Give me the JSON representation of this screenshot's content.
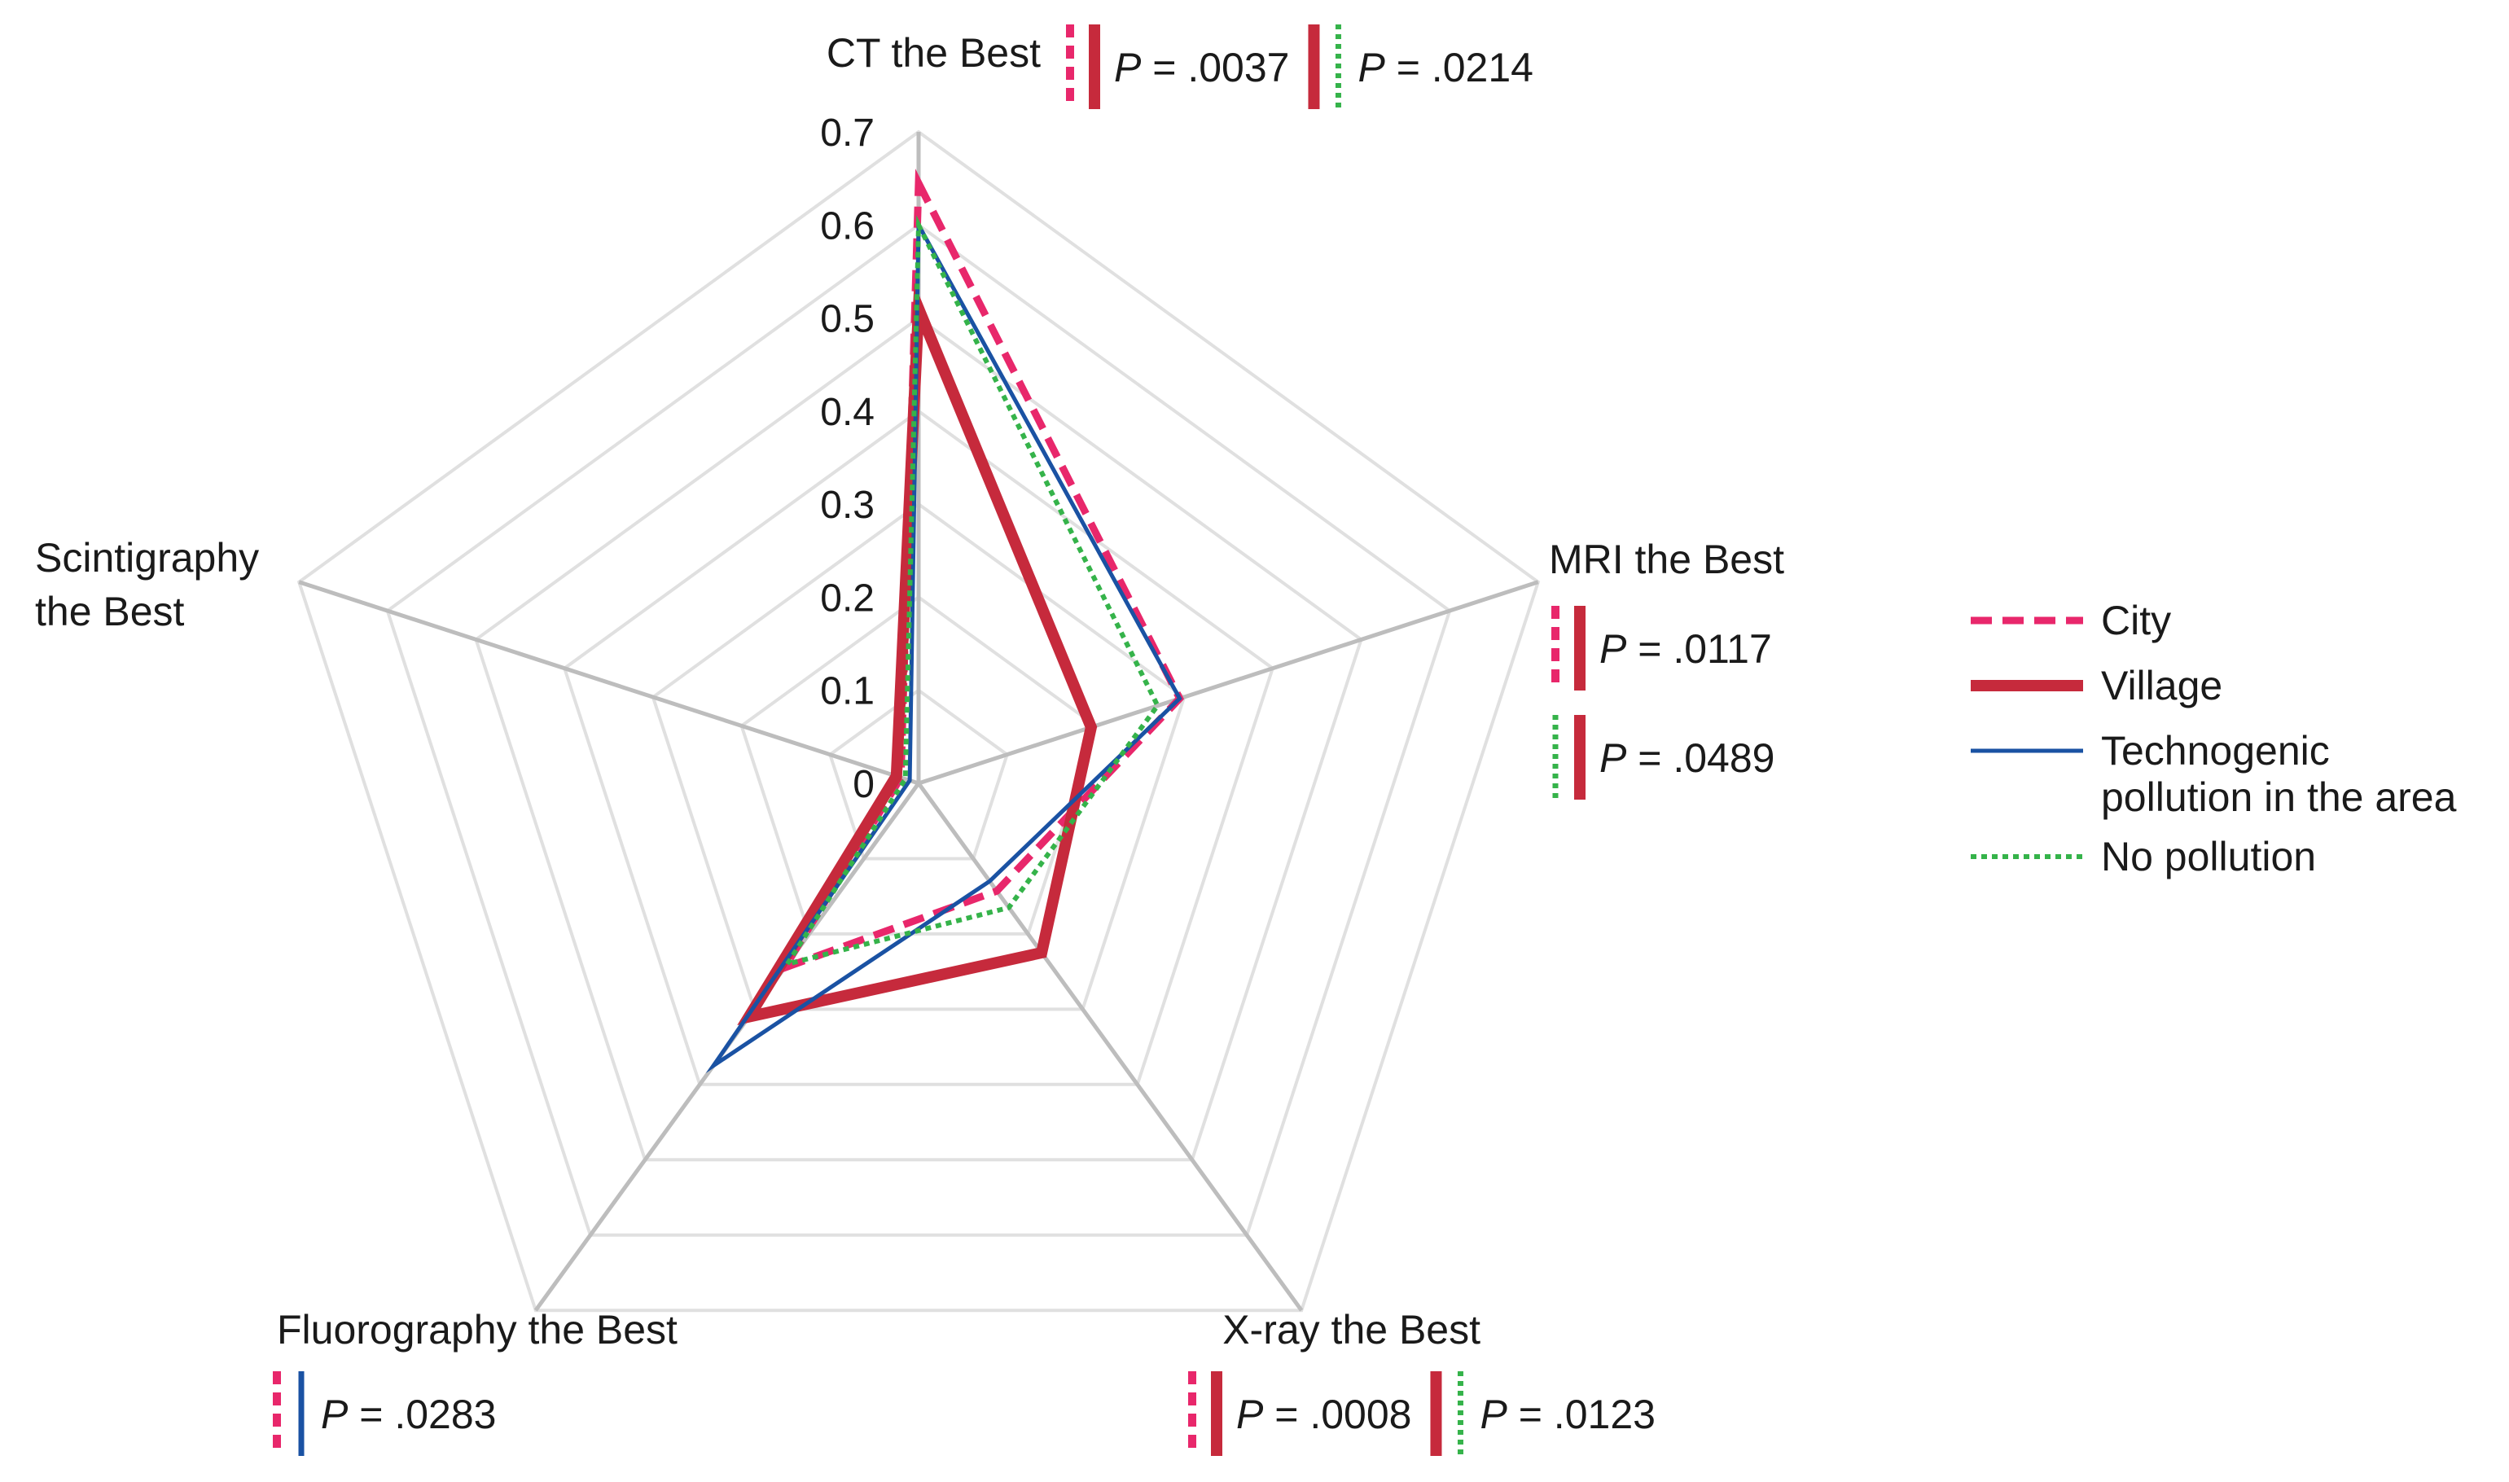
{
  "chart_data": {
    "type": "radar",
    "axes": [
      "CT the Best",
      "MRI the Best",
      "X-ray the Best",
      "Fluorography the Best",
      "Scintigraphy the Best"
    ],
    "axis_label_lines": [
      [
        "CT the Best"
      ],
      [
        "MRI the Best"
      ],
      [
        "X-ray the Best"
      ],
      [
        "Fluorography the Best"
      ],
      [
        "Scintigraphy",
        "the Best"
      ]
    ],
    "rlim": [
      0,
      0.7
    ],
    "ticks": [
      0,
      0.1,
      0.2,
      0.3,
      0.4,
      0.5,
      0.6,
      0.7
    ],
    "tick_labels": [
      "0",
      "0.1",
      "0.2",
      "0.3",
      "0.4",
      "0.5",
      "0.6",
      "0.7"
    ],
    "grid": true,
    "legend_position": "right",
    "series": [
      {
        "name": "City",
        "style": "dashed",
        "color": "#e8276b",
        "values": [
          0.645,
          0.295,
          0.143,
          0.245,
          0.02
        ]
      },
      {
        "name": "Village",
        "style": "solid-thick",
        "color": "#c62a3c",
        "values": [
          0.51,
          0.195,
          0.225,
          0.31,
          0.025
        ]
      },
      {
        "name": "Technogenic pollution in the area",
        "legend_lines": [
          "Technogenic",
          "pollution in the area"
        ],
        "style": "solid-thin",
        "color": "#1a52a3",
        "values": [
          0.6,
          0.295,
          0.13,
          0.375,
          0.01
        ]
      },
      {
        "name": "No pollution",
        "style": "dotted",
        "color": "#35b34a",
        "values": [
          0.6,
          0.27,
          0.165,
          0.24,
          0.015
        ]
      }
    ],
    "annotations": [
      {
        "axis": "CT the Best",
        "layout": "row",
        "items": [
          {
            "pair": [
              "City",
              "Village"
            ],
            "p": ".0037"
          },
          {
            "pair": [
              "Village",
              "No pollution"
            ],
            "p": ".0214"
          }
        ]
      },
      {
        "axis": "MRI the Best",
        "layout": "column",
        "items": [
          {
            "pair": [
              "City",
              "Village"
            ],
            "p": ".0117"
          },
          {
            "pair": [
              "No pollution",
              "Village"
            ],
            "p": ".0489"
          }
        ]
      },
      {
        "axis": "X-ray the Best",
        "layout": "row",
        "items": [
          {
            "pair": [
              "City",
              "Village"
            ],
            "p": ".0008"
          },
          {
            "pair": [
              "Village",
              "No pollution"
            ],
            "p": ".0123"
          }
        ]
      },
      {
        "axis": "Fluorography the Best",
        "layout": "row",
        "items": [
          {
            "pair": [
              "City",
              "Technogenic pollution in the area"
            ],
            "p": ".0283"
          }
        ]
      }
    ],
    "p_symbol": "P",
    "p_equals": " = "
  }
}
